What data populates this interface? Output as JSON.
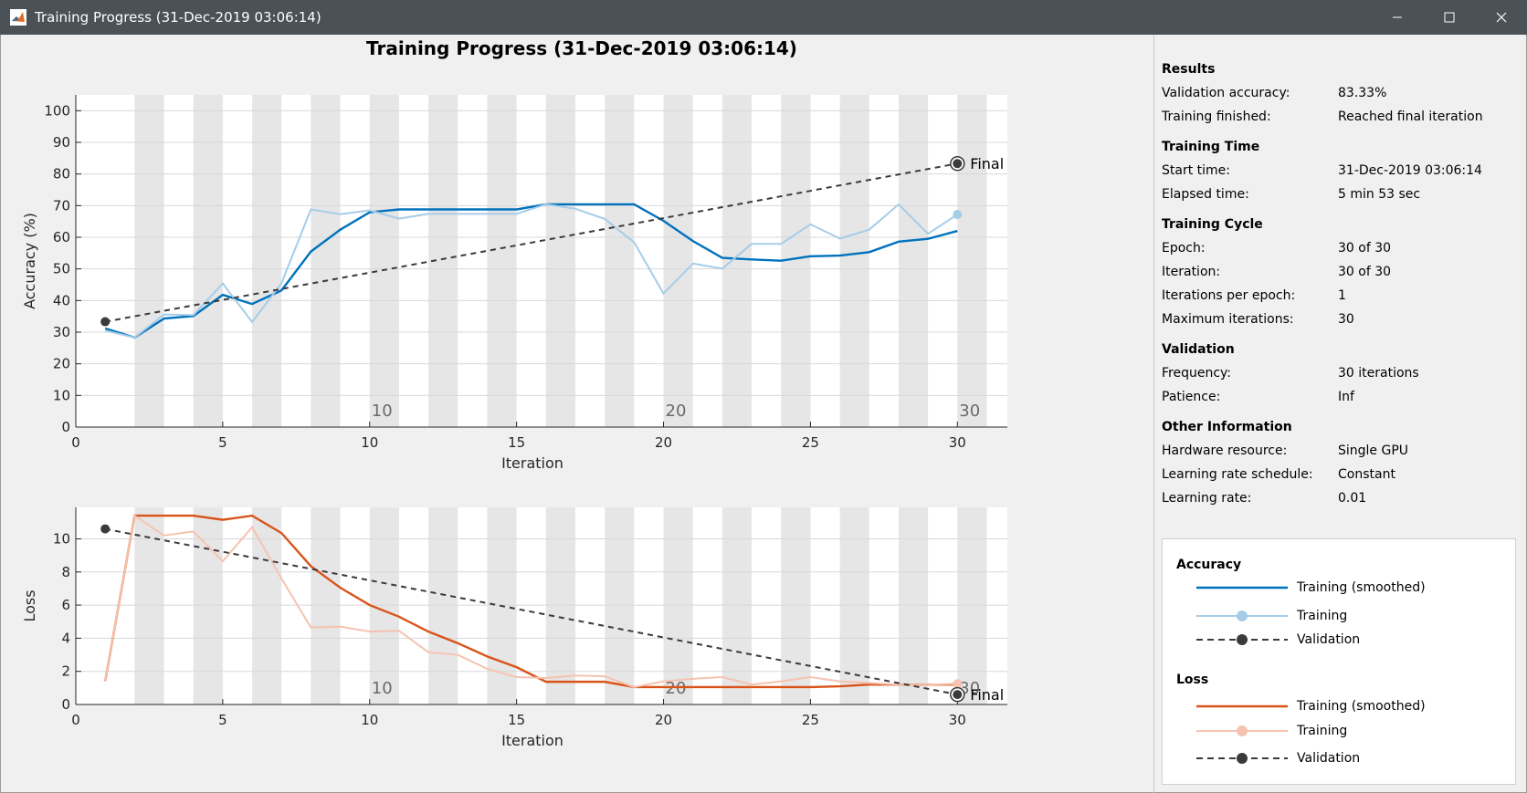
{
  "window": {
    "title": "Training Progress (31-Dec-2019 03:06:14)",
    "app_icon": "matlab-logo-icon",
    "controls": [
      "minimize-icon",
      "maximize-icon",
      "close-icon"
    ]
  },
  "plot_title": "Training Progress (31-Dec-2019 03:06:14)",
  "chart_data": [
    {
      "type": "line",
      "title": "",
      "xlabel": "Iteration",
      "ylabel": "Accuracy (%)",
      "xlim": [
        0,
        31.7
      ],
      "ylim": [
        0,
        105
      ],
      "xticks": [
        0,
        5,
        10,
        15,
        20,
        25,
        30
      ],
      "yticks": [
        0,
        10,
        20,
        30,
        40,
        50,
        60,
        70,
        80,
        90,
        100
      ],
      "epoch_labels": [
        {
          "x": 10,
          "label": "10"
        },
        {
          "x": 20,
          "label": "20"
        },
        {
          "x": 30,
          "label": "30"
        }
      ],
      "final_label": "Final",
      "series": [
        {
          "name": "Training (smoothed)",
          "color": "#0072bd",
          "x": [
            1,
            2,
            3,
            4,
            5,
            6,
            7,
            8,
            9,
            10,
            11,
            12,
            13,
            14,
            15,
            16,
            17,
            18,
            19,
            20,
            21,
            22,
            23,
            24,
            25,
            26,
            27,
            28,
            29,
            30
          ],
          "values": [
            31.2,
            28.3,
            34.3,
            35.1,
            41.8,
            38.9,
            43.2,
            55.5,
            62.4,
            67.9,
            68.8,
            68.8,
            68.8,
            68.8,
            68.8,
            70.4,
            70.4,
            70.4,
            70.4,
            65.2,
            58.8,
            53.5,
            53.0,
            52.6,
            54.0,
            54.2,
            55.3,
            58.6,
            59.5,
            62.0
          ]
        },
        {
          "name": "Training",
          "color": "#a6cde8",
          "x": [
            1,
            2,
            3,
            4,
            5,
            6,
            7,
            8,
            9,
            10,
            11,
            12,
            13,
            14,
            15,
            16,
            17,
            18,
            19,
            20,
            21,
            22,
            23,
            24,
            25,
            26,
            27,
            28,
            29,
            30
          ],
          "values": [
            30.5,
            28.3,
            35.6,
            35.4,
            45.4,
            33.2,
            45.5,
            68.8,
            67.3,
            68.5,
            65.9,
            67.4,
            67.4,
            67.4,
            67.4,
            70.4,
            69.0,
            65.8,
            58.4,
            42.2,
            51.7,
            50.1,
            57.9,
            57.9,
            64.1,
            59.6,
            62.4,
            70.4,
            61.1,
            67.2
          ]
        },
        {
          "name": "Validation",
          "color": "#3a3a3a",
          "x": [
            1,
            30
          ],
          "values": [
            33.3,
            83.3
          ]
        }
      ]
    },
    {
      "type": "line",
      "title": "",
      "xlabel": "Iteration",
      "ylabel": "Loss",
      "xlim": [
        0,
        31.7
      ],
      "ylim": [
        0,
        11.9
      ],
      "xticks": [
        0,
        5,
        10,
        15,
        20,
        25,
        30
      ],
      "yticks": [
        0,
        2,
        4,
        6,
        8,
        10
      ],
      "epoch_labels": [
        {
          "x": 10,
          "label": "10"
        },
        {
          "x": 20,
          "label": "20"
        },
        {
          "x": 30,
          "label": "30"
        }
      ],
      "final_label": "Final",
      "series": [
        {
          "name": "Training (smoothed)",
          "color": "#d95319",
          "x": [
            1,
            2,
            3,
            4,
            5,
            6,
            7,
            8,
            9,
            10,
            11,
            12,
            13,
            14,
            15,
            16,
            17,
            18,
            19,
            20,
            21,
            22,
            23,
            24,
            25,
            26,
            27,
            28,
            29,
            30
          ],
          "values": [
            1.4,
            11.4,
            11.4,
            11.4,
            11.15,
            11.4,
            10.35,
            8.35,
            7.05,
            6.0,
            5.3,
            4.4,
            3.7,
            2.9,
            2.25,
            1.37,
            1.37,
            1.37,
            1.05,
            1.05,
            1.05,
            1.05,
            1.05,
            1.05,
            1.05,
            1.1,
            1.2,
            1.2,
            1.2,
            1.2
          ]
        },
        {
          "name": "Training",
          "color": "#f5c3b0",
          "x": [
            1,
            2,
            3,
            4,
            5,
            6,
            7,
            8,
            9,
            10,
            11,
            12,
            13,
            14,
            15,
            16,
            17,
            18,
            19,
            20,
            21,
            22,
            23,
            24,
            25,
            26,
            27,
            28,
            29,
            30
          ],
          "values": [
            1.4,
            11.4,
            10.2,
            10.45,
            8.65,
            10.7,
            7.6,
            4.65,
            4.7,
            4.4,
            4.45,
            3.15,
            3.0,
            2.15,
            1.65,
            1.6,
            1.75,
            1.7,
            1.05,
            1.4,
            1.55,
            1.65,
            1.2,
            1.4,
            1.65,
            1.4,
            1.3,
            1.2,
            1.2,
            1.25
          ]
        },
        {
          "name": "Validation",
          "color": "#3a3a3a",
          "x": [
            1,
            30
          ],
          "values": [
            10.6,
            0.6
          ]
        }
      ]
    }
  ],
  "info": {
    "sections": [
      {
        "title": "Results",
        "rows": [
          {
            "key": "Validation accuracy:",
            "value": "83.33%"
          },
          {
            "key": "Training finished:",
            "value": "Reached final iteration"
          }
        ]
      },
      {
        "title": "Training Time",
        "rows": [
          {
            "key": "Start time:",
            "value": "31-Dec-2019 03:06:14"
          },
          {
            "key": "Elapsed time:",
            "value": "5 min 53 sec"
          }
        ]
      },
      {
        "title": "Training Cycle",
        "rows": [
          {
            "key": "Epoch:",
            "value": "30 of 30"
          },
          {
            "key": "Iteration:",
            "value": "30 of 30"
          },
          {
            "key": "Iterations per epoch:",
            "value": "1"
          },
          {
            "key": "Maximum iterations:",
            "value": "30"
          }
        ]
      },
      {
        "title": "Validation",
        "rows": [
          {
            "key": "Frequency:",
            "value": "30 iterations"
          },
          {
            "key": "Patience:",
            "value": "Inf"
          }
        ]
      },
      {
        "title": "Other Information",
        "rows": [
          {
            "key": "Hardware resource:",
            "value": "Single GPU"
          },
          {
            "key": "Learning rate schedule:",
            "value": "Constant"
          },
          {
            "key": "Learning rate:",
            "value": "0.01"
          }
        ]
      }
    ]
  },
  "legend": {
    "accuracy_title": "Accuracy",
    "loss_title": "Loss",
    "accuracy_items": [
      {
        "label": "Training (smoothed)",
        "color": "#0072bd",
        "style": "solid"
      },
      {
        "label": "Training",
        "color": "#a6cde8",
        "style": "marker"
      },
      {
        "label": "Validation",
        "color": "#3a3a3a",
        "style": "dashed-marker"
      }
    ],
    "loss_items": [
      {
        "label": "Training (smoothed)",
        "color": "#d95319",
        "style": "solid"
      },
      {
        "label": "Training",
        "color": "#f5c3b0",
        "style": "marker"
      },
      {
        "label": "Validation",
        "color": "#3a3a3a",
        "style": "dashed-marker"
      }
    ]
  }
}
